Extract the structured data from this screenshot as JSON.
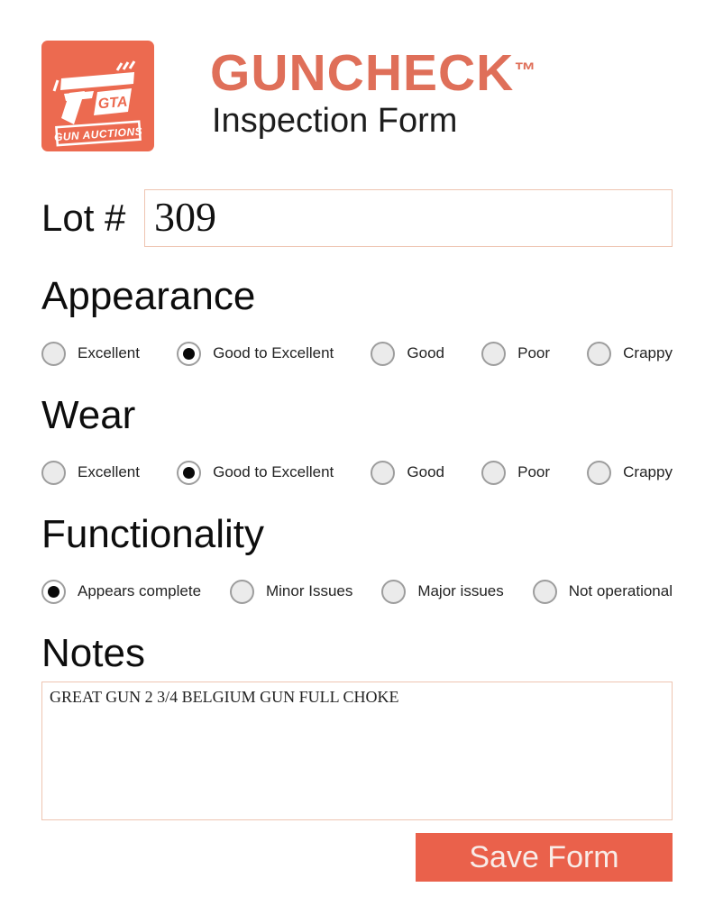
{
  "colors": {
    "accent": "#ec6a50",
    "title": "#df6f59",
    "button": "#ea614b",
    "field-border": "#eec4b1",
    "radio-border": "#9d9d9d",
    "radio-fill": "#ebebeb",
    "text": "#161616"
  },
  "header": {
    "title": "GUNCHECK",
    "trademark": "™",
    "subtitle": "Inspection Form",
    "logo": {
      "badge": "GTA",
      "banner": "GUN AUCTIONS"
    }
  },
  "lot": {
    "label": "Lot #",
    "value": "309"
  },
  "sections": [
    {
      "id": "appearance",
      "heading": "Appearance",
      "options": [
        "Excellent",
        "Good to Excellent",
        "Good",
        "Poor",
        "Crappy"
      ],
      "selected_index": 1
    },
    {
      "id": "wear",
      "heading": "Wear",
      "options": [
        "Excellent",
        "Good to Excellent",
        "Good",
        "Poor",
        "Crappy"
      ],
      "selected_index": 1
    },
    {
      "id": "functionality",
      "heading": "Functionality",
      "options": [
        "Appears complete",
        "Minor Issues",
        "Major issues",
        "Not operational"
      ],
      "selected_index": 0
    }
  ],
  "notes": {
    "heading": "Notes",
    "value": "GREAT GUN 2 3/4 BELGIUM GUN FULL CHOKE"
  },
  "save_button": {
    "label": "Save Form"
  }
}
